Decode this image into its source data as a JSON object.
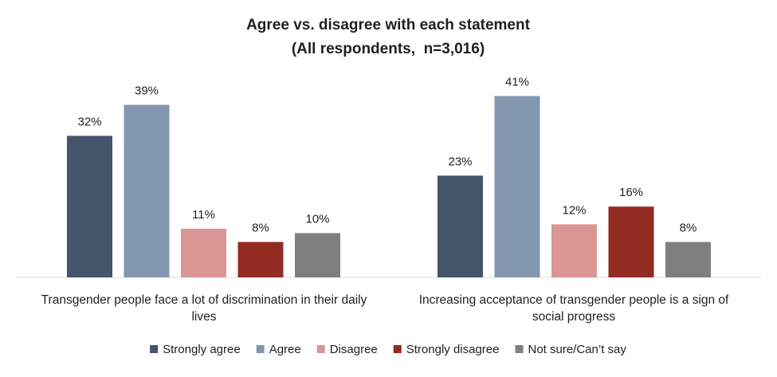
{
  "chart_data": {
    "type": "bar",
    "title": "Agree vs. disagree with each statement",
    "subtitle": "(All respondents,  n=3,016)",
    "categories": [
      [
        "Transgender people face a lot of discrimination in their daily",
        "lives"
      ],
      [
        "Increasing acceptance of transgender people is a sign of",
        "social progress"
      ]
    ],
    "series": [
      {
        "name": "Strongly agree",
        "color": "#44546A",
        "values": [
          32,
          23
        ]
      },
      {
        "name": "Agree",
        "color": "#8497B0",
        "values": [
          39,
          41
        ]
      },
      {
        "name": "Disagree",
        "color": "#DA9694",
        "values": [
          11,
          12
        ]
      },
      {
        "name": "Strongly disagree",
        "color": "#922B21",
        "values": [
          8,
          16
        ]
      },
      {
        "name": "Not sure/Can’t say",
        "color": "#7F7F7F",
        "values": [
          10,
          8
        ]
      }
    ],
    "value_suffix": "%",
    "ylim": [
      0,
      41
    ],
    "grid": false,
    "legend_position": "bottom",
    "xlabel": "",
    "ylabel": ""
  }
}
